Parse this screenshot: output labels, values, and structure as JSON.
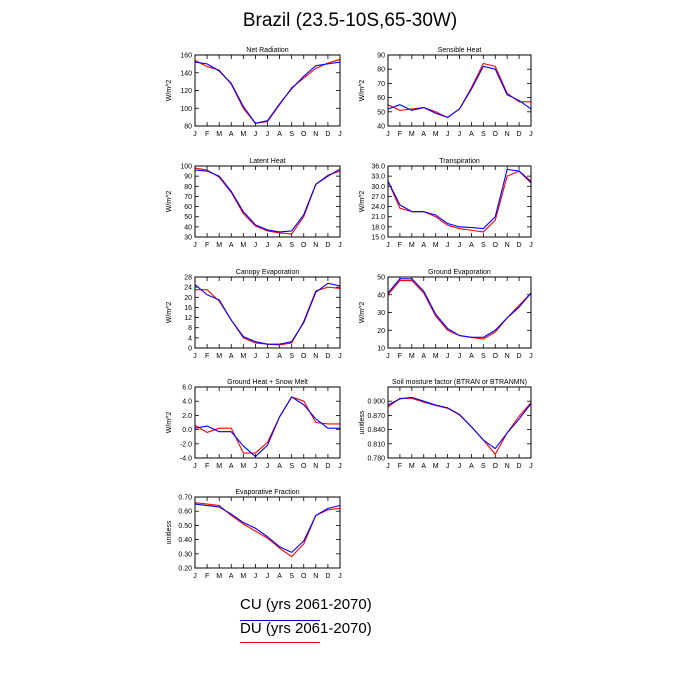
{
  "title": "Brazil (23.5-10S,65-30W)",
  "series_colors": {
    "CU": "#0000ff",
    "DU": "#ff0000"
  },
  "legend": [
    {
      "label": "CU (yrs 2061-2070)",
      "color": "#0000ff"
    },
    {
      "label": "DU (yrs 2061-2070)",
      "color": "#ff0000"
    }
  ],
  "chart_data": [
    {
      "type": "line",
      "title": "Net Radiation",
      "ylabel": "W/m^2",
      "x": [
        "J",
        "F",
        "M",
        "A",
        "M",
        "J",
        "J",
        "A",
        "S",
        "O",
        "N",
        "D",
        "J"
      ],
      "ylim": [
        80,
        160
      ],
      "yticks": [
        "80",
        "100",
        "120",
        "140",
        "160"
      ],
      "series": [
        {
          "name": "CU",
          "values": [
            152,
            150,
            142,
            128,
            102,
            83,
            86,
            105,
            122,
            136,
            148,
            150,
            152
          ]
        },
        {
          "name": "DU",
          "values": [
            154,
            147,
            143,
            127,
            100,
            83,
            85,
            104,
            123,
            134,
            145,
            151,
            155
          ]
        }
      ]
    },
    {
      "type": "line",
      "title": "Sensible Heat",
      "ylabel": "W/m^2",
      "x": [
        "J",
        "F",
        "M",
        "A",
        "M",
        "J",
        "J",
        "A",
        "S",
        "O",
        "N",
        "D",
        "J"
      ],
      "ylim": [
        40,
        90
      ],
      "yticks": [
        "40",
        "50",
        "60",
        "70",
        "80",
        "90"
      ],
      "series": [
        {
          "name": "CU",
          "values": [
            52,
            55,
            51,
            53,
            49,
            46,
            52,
            66,
            82,
            80,
            62,
            58,
            52
          ]
        },
        {
          "name": "DU",
          "values": [
            55,
            51,
            52,
            53,
            50,
            46,
            52,
            67,
            84,
            82,
            63,
            57,
            57
          ]
        }
      ]
    },
    {
      "type": "line",
      "title": "Latent Heat",
      "ylabel": "W/m^2",
      "x": [
        "J",
        "F",
        "M",
        "A",
        "M",
        "J",
        "J",
        "A",
        "S",
        "O",
        "N",
        "D",
        "J"
      ],
      "ylim": [
        30,
        100
      ],
      "yticks": [
        "30",
        "40",
        "50",
        "60",
        "70",
        "80",
        "90",
        "100"
      ],
      "series": [
        {
          "name": "CU",
          "values": [
            96,
            95,
            90,
            75,
            55,
            42,
            37,
            35,
            36,
            52,
            82,
            90,
            97
          ]
        },
        {
          "name": "DU",
          "values": [
            98,
            96,
            89,
            74,
            53,
            41,
            36,
            34,
            33,
            50,
            82,
            91,
            95
          ]
        }
      ]
    },
    {
      "type": "line",
      "title": "Transpiration",
      "ylabel": "W/m^2",
      "x": [
        "J",
        "F",
        "M",
        "A",
        "M",
        "J",
        "J",
        "A",
        "S",
        "O",
        "N",
        "D",
        "J"
      ],
      "ylim": [
        15,
        36
      ],
      "yticks": [
        "15.0",
        "18.0",
        "21.0",
        "24.0",
        "27.0",
        "30.0",
        "33.0",
        "36.0"
      ],
      "series": [
        {
          "name": "CU",
          "values": [
            31.5,
            24.5,
            22.5,
            22.5,
            21.5,
            19,
            18,
            17.8,
            17.5,
            21,
            35,
            34.5,
            31
          ]
        },
        {
          "name": "DU",
          "values": [
            31.5,
            23.5,
            22.5,
            22.5,
            21,
            18.5,
            17.5,
            17,
            16.5,
            20,
            33,
            34.5,
            31.5
          ]
        }
      ]
    },
    {
      "type": "line",
      "title": "Canopy Evaporation",
      "ylabel": "W/m^2",
      "x": [
        "J",
        "F",
        "M",
        "A",
        "M",
        "J",
        "J",
        "A",
        "S",
        "O",
        "N",
        "D",
        "J"
      ],
      "ylim": [
        0,
        28
      ],
      "yticks": [
        "0",
        "4",
        "8",
        "12",
        "16",
        "20",
        "24",
        "28"
      ],
      "series": [
        {
          "name": "CU",
          "values": [
            25,
            21,
            19,
            11,
            4.5,
            2.5,
            1.5,
            1.5,
            2.5,
            10,
            22,
            25.5,
            24.5
          ]
        },
        {
          "name": "DU",
          "values": [
            23,
            23,
            18.5,
            11,
            4,
            2,
            1.5,
            1.2,
            2,
            10.5,
            22.5,
            24,
            23.5
          ]
        }
      ]
    },
    {
      "type": "line",
      "title": "Ground Evaporation",
      "ylabel": "W/m^2",
      "x": [
        "J",
        "F",
        "M",
        "A",
        "M",
        "J",
        "J",
        "A",
        "S",
        "O",
        "N",
        "D",
        "J"
      ],
      "ylim": [
        10,
        50
      ],
      "yticks": [
        "10",
        "20",
        "30",
        "40",
        "50"
      ],
      "series": [
        {
          "name": "CU",
          "values": [
            41,
            49,
            49,
            42,
            29,
            21,
            17,
            16,
            16,
            20,
            27,
            33,
            41
          ]
        },
        {
          "name": "DU",
          "values": [
            40,
            48,
            48,
            41,
            28,
            20,
            17,
            16,
            15,
            19,
            27,
            34,
            41
          ]
        }
      ]
    },
    {
      "type": "line",
      "title": "Ground Heat + Snow Melt",
      "ylabel": "W/m^2",
      "x": [
        "J",
        "F",
        "M",
        "A",
        "M",
        "J",
        "J",
        "A",
        "S",
        "O",
        "N",
        "D",
        "J"
      ],
      "ylim": [
        -4,
        6
      ],
      "yticks": [
        "-4.0",
        "-2.0",
        "0.0",
        "2.0",
        "4.0",
        "6.0"
      ],
      "series": [
        {
          "name": "CU",
          "values": [
            0.2,
            0.5,
            -0.3,
            -0.3,
            -2.3,
            -3.8,
            -2.2,
            1.8,
            4.6,
            3.5,
            1.5,
            0.2,
            0.2
          ]
        },
        {
          "name": "DU",
          "values": [
            0.6,
            -0.4,
            0.2,
            0.2,
            -3.3,
            -3.3,
            -1.8,
            1.8,
            4.6,
            4.0,
            1.0,
            0.8,
            0.8
          ]
        }
      ]
    },
    {
      "type": "line",
      "title": "Soil moisture factor (BTRAN or BTRANMN)",
      "ylabel": "unitless",
      "x": [
        "J",
        "F",
        "M",
        "A",
        "M",
        "J",
        "J",
        "A",
        "S",
        "O",
        "N",
        "D",
        "J"
      ],
      "ylim": [
        0.78,
        0.93
      ],
      "yticks": [
        "0.780",
        "0.810",
        "0.840",
        "0.870",
        "0.900"
      ],
      "series": [
        {
          "name": "CU",
          "values": [
            0.892,
            0.905,
            0.908,
            0.9,
            0.892,
            0.886,
            0.872,
            0.846,
            0.818,
            0.8,
            0.833,
            0.862,
            0.895
          ]
        },
        {
          "name": "DU",
          "values": [
            0.888,
            0.906,
            0.906,
            0.898,
            0.891,
            0.885,
            0.871,
            0.846,
            0.818,
            0.788,
            0.833,
            0.868,
            0.897
          ]
        }
      ]
    },
    {
      "type": "line",
      "title": "Evaporative Fraction",
      "ylabel": "unitless",
      "x": [
        "J",
        "F",
        "M",
        "A",
        "M",
        "J",
        "J",
        "A",
        "S",
        "O",
        "N",
        "D",
        "J"
      ],
      "ylim": [
        0.2,
        0.7
      ],
      "yticks": [
        "0.20",
        "0.30",
        "0.40",
        "0.50",
        "0.60",
        "0.70"
      ],
      "series": [
        {
          "name": "CU",
          "values": [
            0.65,
            0.64,
            0.63,
            0.58,
            0.52,
            0.48,
            0.42,
            0.35,
            0.31,
            0.39,
            0.57,
            0.62,
            0.64
          ]
        },
        {
          "name": "DU",
          "values": [
            0.66,
            0.65,
            0.64,
            0.57,
            0.51,
            0.46,
            0.41,
            0.34,
            0.28,
            0.37,
            0.57,
            0.61,
            0.62
          ]
        }
      ]
    }
  ]
}
